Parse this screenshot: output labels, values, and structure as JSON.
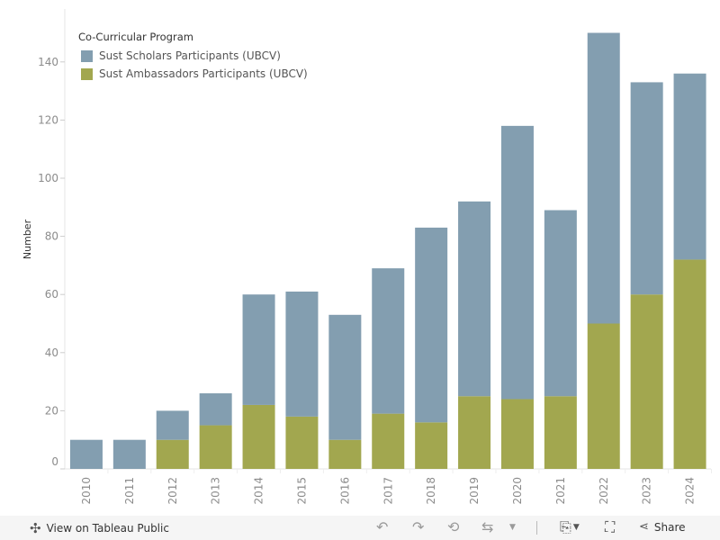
{
  "chart_data": {
    "type": "bar",
    "stacked": true,
    "orientation": "vertical",
    "categories": [
      "2010",
      "2011",
      "2012",
      "2013",
      "2014",
      "2015",
      "2016",
      "2017",
      "2018",
      "2019",
      "2020",
      "2021",
      "2022",
      "2023",
      "2024"
    ],
    "series": [
      {
        "name": "Sust Ambassadors Participants (UBCV)",
        "color": "#a2a74f",
        "values": [
          0,
          0,
          10,
          15,
          22,
          18,
          10,
          19,
          16,
          25,
          24,
          25,
          50,
          60,
          72
        ]
      },
      {
        "name": "Sust Scholars Participants (UBCV)",
        "color": "#839eb0",
        "values": [
          10,
          10,
          10,
          11,
          38,
          43,
          43,
          50,
          67,
          67,
          94,
          64,
          100,
          73,
          64
        ]
      }
    ],
    "totals": [
      10,
      10,
      20,
      26,
      60,
      61,
      53,
      69,
      83,
      92,
      118,
      89,
      150,
      133,
      136
    ],
    "title": "",
    "xlabel": "",
    "ylabel": "Number",
    "ylim": [
      0,
      155
    ],
    "yticks": [
      0,
      20,
      40,
      60,
      80,
      100,
      120,
      140
    ],
    "grid": false,
    "legend": {
      "title": "Co-Curricular Program",
      "placement": "top-left",
      "entries": [
        "Sust Scholars Participants (UBCV)",
        "Sust Ambassadors Participants (UBCV)"
      ]
    }
  },
  "toolbar": {
    "view_label": "View on Tableau Public",
    "share_label": "Share",
    "icons": [
      "tableau-logo-icon",
      "undo-icon",
      "redo-icon",
      "revert-icon",
      "refresh-icon",
      "dropdown-icon",
      "download-icon",
      "fullscreen-icon",
      "share-icon"
    ]
  }
}
